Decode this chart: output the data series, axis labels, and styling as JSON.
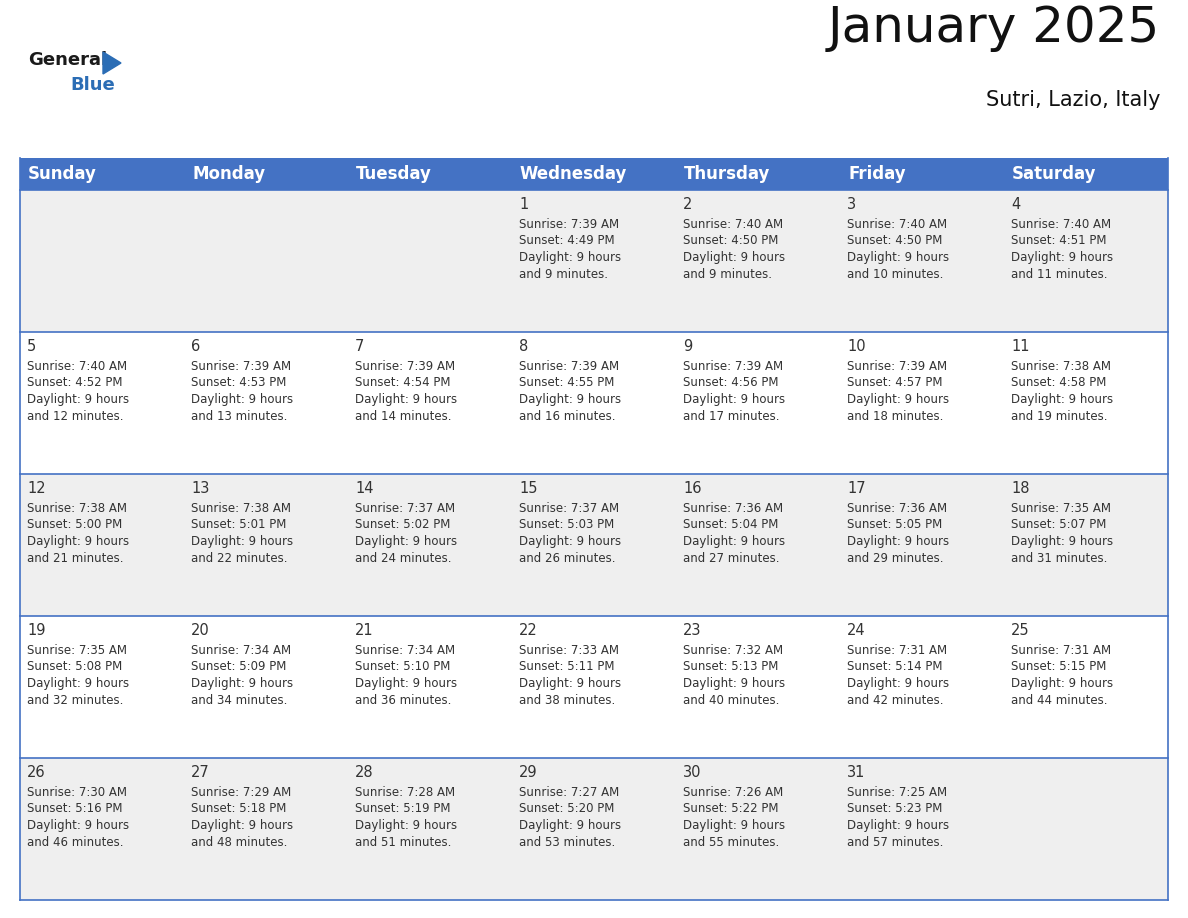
{
  "title": "January 2025",
  "subtitle": "Sutri, Lazio, Italy",
  "header_bg_color": "#4472C4",
  "header_text_color": "#FFFFFF",
  "header_font_size": 12,
  "day_names": [
    "Sunday",
    "Monday",
    "Tuesday",
    "Wednesday",
    "Thursday",
    "Friday",
    "Saturday"
  ],
  "title_font_size": 36,
  "subtitle_font_size": 15,
  "cell_text_color": "#333333",
  "cell_date_font_size": 10.5,
  "cell_info_font_size": 8.5,
  "grid_color": "#4472C4",
  "odd_row_color": "#EFEFEF",
  "even_row_color": "#FFFFFF",
  "logo_general_color": "#1a1a1a",
  "logo_blue_color": "#2B6DB5",
  "fig_width": 11.88,
  "fig_height": 9.18,
  "days": [
    {
      "day": 1,
      "col": 3,
      "row": 0,
      "sunrise": "7:39 AM",
      "sunset": "4:49 PM",
      "daylight_hours": 9,
      "daylight_minutes": 9
    },
    {
      "day": 2,
      "col": 4,
      "row": 0,
      "sunrise": "7:40 AM",
      "sunset": "4:50 PM",
      "daylight_hours": 9,
      "daylight_minutes": 9
    },
    {
      "day": 3,
      "col": 5,
      "row": 0,
      "sunrise": "7:40 AM",
      "sunset": "4:50 PM",
      "daylight_hours": 9,
      "daylight_minutes": 10
    },
    {
      "day": 4,
      "col": 6,
      "row": 0,
      "sunrise": "7:40 AM",
      "sunset": "4:51 PM",
      "daylight_hours": 9,
      "daylight_minutes": 11
    },
    {
      "day": 5,
      "col": 0,
      "row": 1,
      "sunrise": "7:40 AM",
      "sunset": "4:52 PM",
      "daylight_hours": 9,
      "daylight_minutes": 12
    },
    {
      "day": 6,
      "col": 1,
      "row": 1,
      "sunrise": "7:39 AM",
      "sunset": "4:53 PM",
      "daylight_hours": 9,
      "daylight_minutes": 13
    },
    {
      "day": 7,
      "col": 2,
      "row": 1,
      "sunrise": "7:39 AM",
      "sunset": "4:54 PM",
      "daylight_hours": 9,
      "daylight_minutes": 14
    },
    {
      "day": 8,
      "col": 3,
      "row": 1,
      "sunrise": "7:39 AM",
      "sunset": "4:55 PM",
      "daylight_hours": 9,
      "daylight_minutes": 16
    },
    {
      "day": 9,
      "col": 4,
      "row": 1,
      "sunrise": "7:39 AM",
      "sunset": "4:56 PM",
      "daylight_hours": 9,
      "daylight_minutes": 17
    },
    {
      "day": 10,
      "col": 5,
      "row": 1,
      "sunrise": "7:39 AM",
      "sunset": "4:57 PM",
      "daylight_hours": 9,
      "daylight_minutes": 18
    },
    {
      "day": 11,
      "col": 6,
      "row": 1,
      "sunrise": "7:38 AM",
      "sunset": "4:58 PM",
      "daylight_hours": 9,
      "daylight_minutes": 19
    },
    {
      "day": 12,
      "col": 0,
      "row": 2,
      "sunrise": "7:38 AM",
      "sunset": "5:00 PM",
      "daylight_hours": 9,
      "daylight_minutes": 21
    },
    {
      "day": 13,
      "col": 1,
      "row": 2,
      "sunrise": "7:38 AM",
      "sunset": "5:01 PM",
      "daylight_hours": 9,
      "daylight_minutes": 22
    },
    {
      "day": 14,
      "col": 2,
      "row": 2,
      "sunrise": "7:37 AM",
      "sunset": "5:02 PM",
      "daylight_hours": 9,
      "daylight_minutes": 24
    },
    {
      "day": 15,
      "col": 3,
      "row": 2,
      "sunrise": "7:37 AM",
      "sunset": "5:03 PM",
      "daylight_hours": 9,
      "daylight_minutes": 26
    },
    {
      "day": 16,
      "col": 4,
      "row": 2,
      "sunrise": "7:36 AM",
      "sunset": "5:04 PM",
      "daylight_hours": 9,
      "daylight_minutes": 27
    },
    {
      "day": 17,
      "col": 5,
      "row": 2,
      "sunrise": "7:36 AM",
      "sunset": "5:05 PM",
      "daylight_hours": 9,
      "daylight_minutes": 29
    },
    {
      "day": 18,
      "col": 6,
      "row": 2,
      "sunrise": "7:35 AM",
      "sunset": "5:07 PM",
      "daylight_hours": 9,
      "daylight_minutes": 31
    },
    {
      "day": 19,
      "col": 0,
      "row": 3,
      "sunrise": "7:35 AM",
      "sunset": "5:08 PM",
      "daylight_hours": 9,
      "daylight_minutes": 32
    },
    {
      "day": 20,
      "col": 1,
      "row": 3,
      "sunrise": "7:34 AM",
      "sunset": "5:09 PM",
      "daylight_hours": 9,
      "daylight_minutes": 34
    },
    {
      "day": 21,
      "col": 2,
      "row": 3,
      "sunrise": "7:34 AM",
      "sunset": "5:10 PM",
      "daylight_hours": 9,
      "daylight_minutes": 36
    },
    {
      "day": 22,
      "col": 3,
      "row": 3,
      "sunrise": "7:33 AM",
      "sunset": "5:11 PM",
      "daylight_hours": 9,
      "daylight_minutes": 38
    },
    {
      "day": 23,
      "col": 4,
      "row": 3,
      "sunrise": "7:32 AM",
      "sunset": "5:13 PM",
      "daylight_hours": 9,
      "daylight_minutes": 40
    },
    {
      "day": 24,
      "col": 5,
      "row": 3,
      "sunrise": "7:31 AM",
      "sunset": "5:14 PM",
      "daylight_hours": 9,
      "daylight_minutes": 42
    },
    {
      "day": 25,
      "col": 6,
      "row": 3,
      "sunrise": "7:31 AM",
      "sunset": "5:15 PM",
      "daylight_hours": 9,
      "daylight_minutes": 44
    },
    {
      "day": 26,
      "col": 0,
      "row": 4,
      "sunrise": "7:30 AM",
      "sunset": "5:16 PM",
      "daylight_hours": 9,
      "daylight_minutes": 46
    },
    {
      "day": 27,
      "col": 1,
      "row": 4,
      "sunrise": "7:29 AM",
      "sunset": "5:18 PM",
      "daylight_hours": 9,
      "daylight_minutes": 48
    },
    {
      "day": 28,
      "col": 2,
      "row": 4,
      "sunrise": "7:28 AM",
      "sunset": "5:19 PM",
      "daylight_hours": 9,
      "daylight_minutes": 51
    },
    {
      "day": 29,
      "col": 3,
      "row": 4,
      "sunrise": "7:27 AM",
      "sunset": "5:20 PM",
      "daylight_hours": 9,
      "daylight_minutes": 53
    },
    {
      "day": 30,
      "col": 4,
      "row": 4,
      "sunrise": "7:26 AM",
      "sunset": "5:22 PM",
      "daylight_hours": 9,
      "daylight_minutes": 55
    },
    {
      "day": 31,
      "col": 5,
      "row": 4,
      "sunrise": "7:25 AM",
      "sunset": "5:23 PM",
      "daylight_hours": 9,
      "daylight_minutes": 57
    }
  ]
}
